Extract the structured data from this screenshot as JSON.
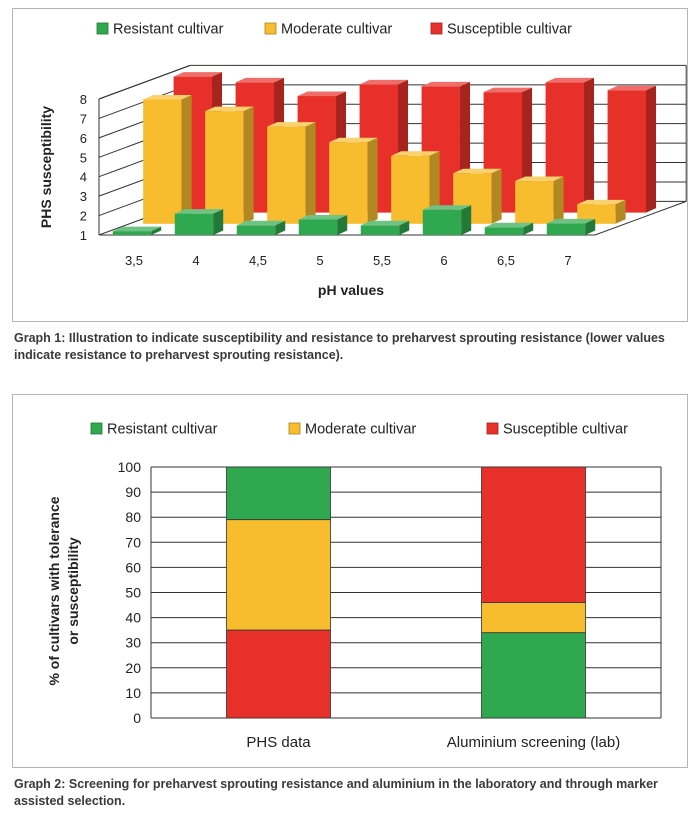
{
  "charts": [
    {
      "type": "bar",
      "title": "",
      "xlabel": "pH values",
      "ylabel": "PHS susceptibility",
      "ylim": [
        1,
        8
      ],
      "yticks": [
        "1",
        "2",
        "3",
        "4",
        "5",
        "6",
        "7",
        "8"
      ],
      "categories": [
        "3,5",
        "4",
        "4,5",
        "5",
        "5,5",
        "6",
        "6,5",
        "7"
      ],
      "legend_position": "top",
      "series": [
        {
          "name": "Resistant cultivar",
          "color": "#2fa84f",
          "values": [
            1.2,
            2.1,
            1.5,
            1.8,
            1.5,
            2.3,
            1.4,
            1.6
          ]
        },
        {
          "name": "Moderate cultivar",
          "color": "#f7bd2f",
          "values": [
            7.4,
            6.8,
            6.0,
            5.2,
            4.5,
            3.6,
            3.2,
            2.0
          ]
        },
        {
          "name": "Susceptible cultivar",
          "color": "#e8302a",
          "values": [
            8.0,
            7.7,
            7.0,
            7.6,
            7.5,
            7.2,
            7.7,
            7.3
          ]
        }
      ]
    },
    {
      "type": "bar",
      "stacked": true,
      "title": "",
      "xlabel": "",
      "ylabel": "% of cultivars with tolerance or susceptibility",
      "ylabel_lines": [
        "% of cultivars with tolerance",
        "or susceptibility"
      ],
      "ylim": [
        0,
        100
      ],
      "yticks": [
        "0",
        "10",
        "20",
        "30",
        "40",
        "50",
        "60",
        "70",
        "80",
        "90",
        "100"
      ],
      "categories": [
        "PHS data",
        "Aluminium screening (lab)"
      ],
      "legend_position": "top",
      "series": [
        {
          "name": "Resistant cultivar",
          "color": "#2fa84f",
          "segments": [
            {
              "from": 79,
              "to": 100
            },
            {
              "from": 0,
              "to": 34
            }
          ]
        },
        {
          "name": "Moderate cultivar",
          "color": "#f7bd2f",
          "segments": [
            {
              "from": 35,
              "to": 79
            },
            {
              "from": 34,
              "to": 46
            }
          ]
        },
        {
          "name": "Susceptible cultivar",
          "color": "#e8302a",
          "segments": [
            {
              "from": 0,
              "to": 35
            },
            {
              "from": 46,
              "to": 100
            }
          ]
        }
      ]
    }
  ],
  "captions": [
    "Graph 1: Illustration to indicate susceptibility and resistance to preharvest sprouting resistance (lower values indicate resistance to preharvest sprouting resistance).",
    "Graph 2: Screening for preharvest sprouting resistance and aluminium in the laboratory and through marker assisted selection."
  ]
}
